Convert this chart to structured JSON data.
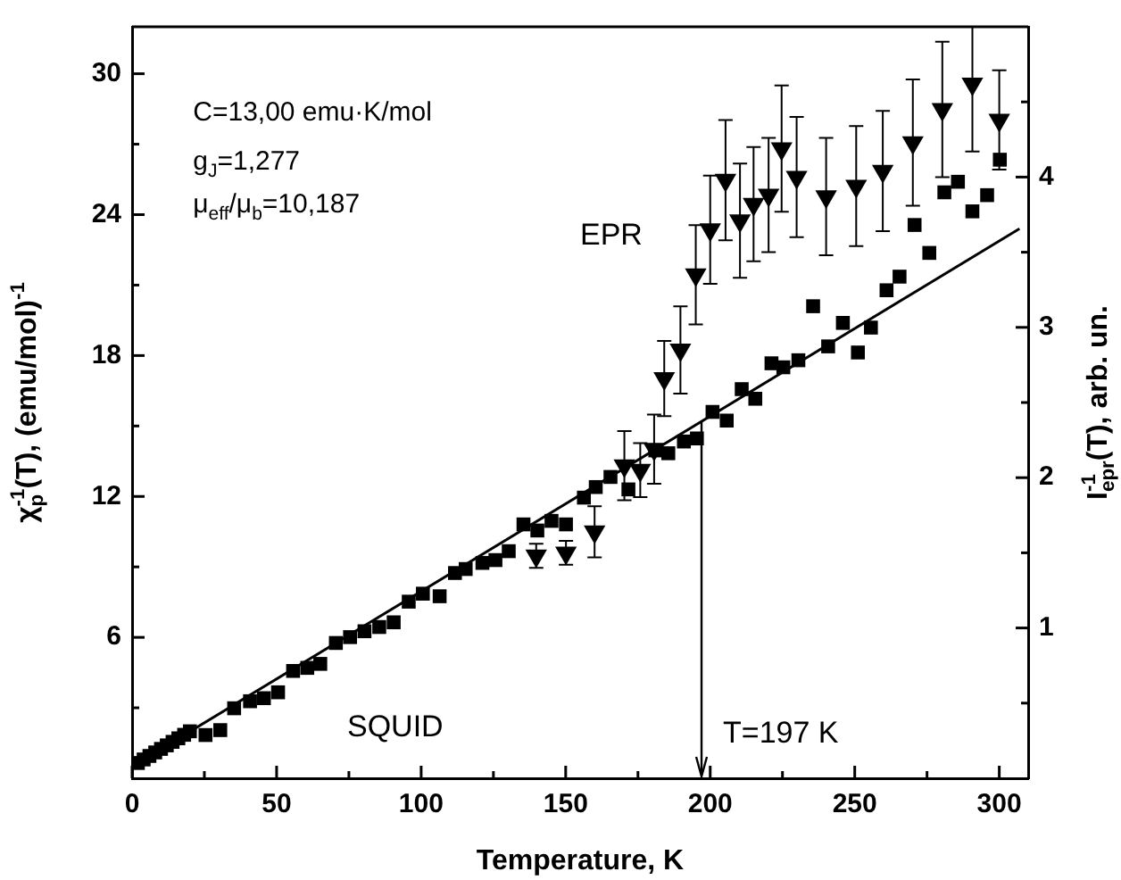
{
  "chart_data": {
    "type": "scatter",
    "xlabel": "Temperature, K",
    "ylabel": "χ$_{p}$$^{-1}$(T), (emu/mol)$^{-1}$",
    "y2label": "I$_{epr}$$^{-1}$(T), arb. un.",
    "xlim": [
      0,
      310
    ],
    "xticks": [
      0,
      {
        "value": 25,
        "label": null
      },
      50,
      {
        "value": 75,
        "label": null
      },
      100,
      {
        "value": 125,
        "label": null
      },
      150,
      {
        "value": 175,
        "label": null
      },
      200,
      {
        "value": 225,
        "label": null
      },
      250,
      {
        "value": 275,
        "label": null
      },
      300
    ],
    "ylim": [
      0,
      32
    ],
    "yticks": [
      {
        "value": 3,
        "label": null
      },
      6,
      {
        "value": 9,
        "label": null
      },
      12,
      {
        "value": 15,
        "label": null
      },
      18,
      {
        "value": 21,
        "label": null
      },
      24,
      {
        "value": 27,
        "label": null
      },
      30
    ],
    "y2lim": [
      0,
      5
    ],
    "y2ticks": [
      {
        "value": 0.5,
        "label": null
      },
      1,
      {
        "value": 1.5,
        "label": null
      },
      2,
      {
        "value": 2.5,
        "label": null
      },
      3,
      {
        "value": 3.5,
        "label": null
      },
      4,
      {
        "value": 4.5,
        "label": null
      }
    ],
    "grid": false,
    "legend": false,
    "annotations": [
      "C=13,00 emu·K/mol",
      "g$_{J}$=1,277",
      "μ$_{eff}$/μ$_{b}$=10,187"
    ],
    "ref_lines": [
      {
        "axis": "x",
        "value": 197,
        "label": "T=197 K"
      }
    ],
    "series": [
      {
        "type": "line",
        "color": "#000000",
        "x": [
          0,
          307
        ],
        "values": [
          0.5,
          23.4
        ],
        "marker": "none",
        "line_style": "solid"
      },
      {
        "name": "SQUID",
        "type": "scatter",
        "color": "#000000",
        "marker": "square",
        "x": [
          2,
          4,
          6,
          8,
          10,
          12,
          14,
          16,
          18,
          20,
          25.4,
          30.5,
          35.3,
          40.8,
          45.6,
          50.5,
          55.7,
          60.6,
          65.1,
          70.5,
          75.4,
          80.4,
          85.5,
          90.5,
          95.7,
          100.6,
          106.4,
          111.7,
          115.4,
          121.2,
          125.7,
          130.3,
          135.4,
          140.2,
          145.1,
          150.1,
          156.3,
          160.4,
          165.5,
          171.7,
          181,
          185.5,
          190.9,
          195.4,
          200.8,
          205.7,
          210.9,
          215.6,
          221.2,
          225.3,
          230.5,
          235.6,
          240.8,
          245.9,
          251.1,
          255.6,
          261,
          265.5,
          270.7,
          275.8,
          281,
          285.7,
          290.7,
          295.8,
          300.2
        ],
        "values": [
          0.65,
          0.8,
          0.95,
          1.1,
          1.25,
          1.4,
          1.55,
          1.7,
          1.85,
          2.0,
          1.84,
          2.05,
          2.98,
          3.28,
          3.41,
          3.66,
          4.57,
          4.7,
          4.87,
          5.76,
          6.01,
          6.26,
          6.44,
          6.64,
          7.52,
          7.86,
          7.75,
          8.74,
          8.91,
          9.17,
          9.29,
          9.67,
          10.81,
          10.55,
          10.96,
          10.81,
          11.95,
          12.4,
          12.83,
          12.3,
          13.96,
          13.84,
          14.34,
          14.47,
          15.6,
          15.23,
          16.57,
          16.16,
          17.67,
          17.5,
          17.8,
          20.1,
          18.39,
          19.39,
          18.13,
          19.19,
          20.78,
          21.36,
          23.56,
          22.37,
          24.95,
          25.4,
          24.14,
          24.83,
          26.34
        ]
      },
      {
        "name": "EPR",
        "type": "scatter",
        "axis": "y2",
        "color": "#000000",
        "marker": "triangle",
        "x": [
          139.8,
          150.1,
          160,
          170.3,
          175.8,
          180.6,
          184.1,
          189.7,
          195,
          200,
          205.3,
          210.3,
          215,
          220.2,
          224.7,
          229.9,
          240.1,
          250.5,
          259.7,
          270.1,
          280.3,
          290.7,
          300
        ],
        "values": [
          1.48,
          1.5,
          1.64,
          2.08,
          2.05,
          2.19,
          2.66,
          2.85,
          3.35,
          3.65,
          3.98,
          3.71,
          3.82,
          3.88,
          4.19,
          4.0,
          3.87,
          3.94,
          4.04,
          4.23,
          4.45,
          4.62,
          4.38
        ],
        "errors": [
          0.08,
          0.08,
          0.17,
          0.23,
          0.18,
          0.23,
          0.25,
          0.29,
          0.33,
          0.36,
          0.4,
          0.38,
          0.38,
          0.38,
          0.42,
          0.4,
          0.39,
          0.4,
          0.4,
          0.42,
          0.45,
          [
            4.17,
            5.0
          ],
          0.33
        ]
      }
    ]
  }
}
